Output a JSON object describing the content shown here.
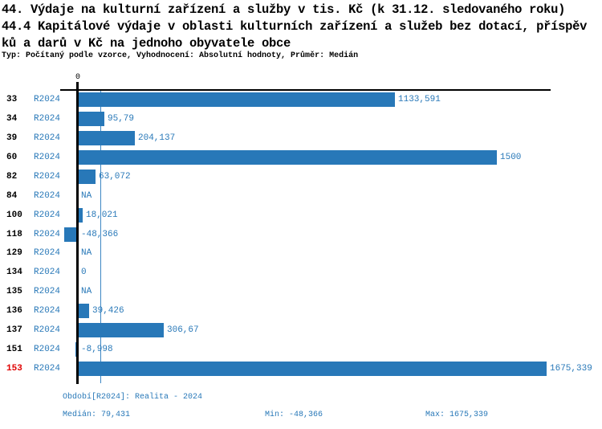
{
  "header": {
    "title_line1": "44. Výdaje na kulturní zařízení a služby v tis. Kč (k 31.12. sledovaného roku)",
    "title_line2": "44.4 Kapitálové výdaje v oblasti kulturních zařízení a služeb bez dotací, příspěv",
    "title_line3": "ků a darů v Kč na jednoho obyvatele obce",
    "meta": "Typ: Počítaný podle vzorce, Vyhodnocení: Absolutní hodnoty, Průměr: Medián"
  },
  "chart_data": {
    "type": "bar",
    "orientation": "horizontal",
    "title": "44. Výdaje na kulturní zařízení a služby v tis. Kč (k 31.12. sledovaného roku)",
    "subtitle": "44.4 Kapitálové výdaje v oblasti kulturních zařízení a služeb bez dotací, příspěvků a darů v Kč na jednoho obyvatele obce",
    "axis": {
      "zero_label": "0",
      "xlim": [
        -48.366,
        1675.339
      ]
    },
    "median_value": 79.431,
    "grid": "median-reference-line-only",
    "legend_position": "none",
    "rows": [
      {
        "id": "33",
        "period": "R2024",
        "value": 1133.591,
        "label": "1133,591",
        "highlight": false
      },
      {
        "id": "34",
        "period": "R2024",
        "value": 95.79,
        "label": "95,79",
        "highlight": false
      },
      {
        "id": "39",
        "period": "R2024",
        "value": 204.137,
        "label": "204,137",
        "highlight": false
      },
      {
        "id": "60",
        "period": "R2024",
        "value": 1500,
        "label": "1500",
        "highlight": false
      },
      {
        "id": "82",
        "period": "R2024",
        "value": 63.072,
        "label": "63,072",
        "highlight": false
      },
      {
        "id": "84",
        "period": "R2024",
        "value": null,
        "label": "NA",
        "highlight": false
      },
      {
        "id": "100",
        "period": "R2024",
        "value": 18.021,
        "label": "18,021",
        "highlight": false
      },
      {
        "id": "118",
        "period": "R2024",
        "value": -48.366,
        "label": "-48,366",
        "highlight": false
      },
      {
        "id": "129",
        "period": "R2024",
        "value": null,
        "label": "NA",
        "highlight": false
      },
      {
        "id": "134",
        "period": "R2024",
        "value": 0,
        "label": "0",
        "highlight": false
      },
      {
        "id": "135",
        "period": "R2024",
        "value": null,
        "label": "NA",
        "highlight": false
      },
      {
        "id": "136",
        "period": "R2024",
        "value": 39.426,
        "label": "39,426",
        "highlight": false
      },
      {
        "id": "137",
        "period": "R2024",
        "value": 306.67,
        "label": "306,67",
        "highlight": false
      },
      {
        "id": "151",
        "period": "R2024",
        "value": -8.998,
        "label": "-8,998",
        "highlight": false
      },
      {
        "id": "153",
        "period": "R2024",
        "value": 1675.339,
        "label": "1675,339",
        "highlight": true
      }
    ],
    "colors": {
      "bar": "#2878b8",
      "text_blue": "#2878b8",
      "highlight_red": "#e00000",
      "median_line": "#3d87c4",
      "axis": "#000000"
    }
  },
  "footer": {
    "period_info": "Období[R2024]: Realita - 2024",
    "median": "Medián: 79,431",
    "min": "Min: -48,366",
    "max": "Max: 1675,339"
  }
}
